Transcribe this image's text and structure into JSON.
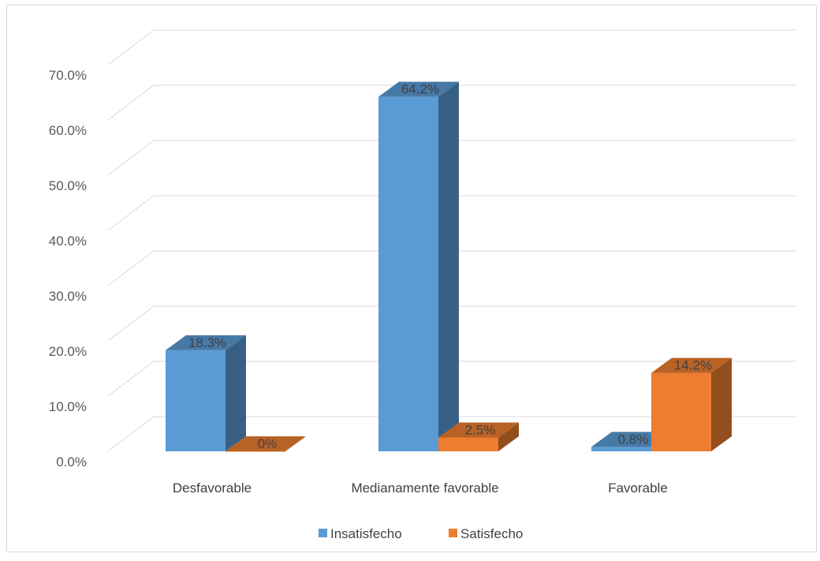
{
  "chart_data": {
    "type": "bar",
    "style": "3d-clustered-column",
    "categories": [
      "Desfavorable",
      "Medianamente favorable",
      "Favorable"
    ],
    "series": [
      {
        "name": "Insatisfecho",
        "values": [
          18.3,
          64.2,
          0.8
        ],
        "labels": [
          "18.3%",
          "64.2%",
          "0.8%"
        ],
        "color": "#5b9bd5"
      },
      {
        "name": "Satisfecho",
        "values": [
          0,
          2.5,
          14.2
        ],
        "labels": [
          "0%",
          "2.5%",
          "14.2%"
        ],
        "color": "#ed7d31"
      }
    ],
    "yticks": [
      "0.0%",
      "10.0%",
      "20.0%",
      "30.0%",
      "40.0%",
      "50.0%",
      "60.0%",
      "70.0%"
    ],
    "ylim": [
      0,
      70
    ],
    "grid": true,
    "legend": "bottom-center"
  }
}
